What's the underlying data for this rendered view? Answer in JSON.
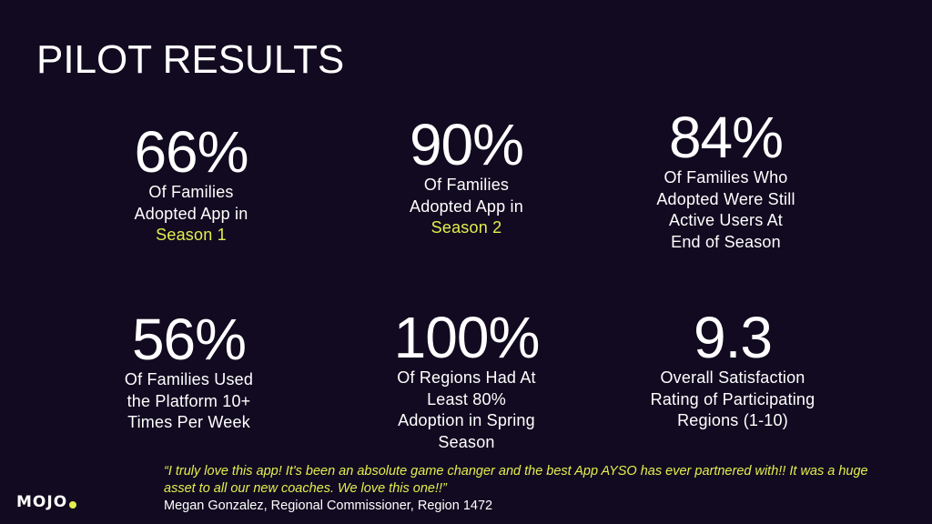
{
  "title": "PILOT RESULTS",
  "stats": [
    {
      "number": "66%",
      "lines": [
        "Of Families",
        "Adopted App in"
      ],
      "highlight": "Season 1"
    },
    {
      "number": "90%",
      "lines": [
        "Of Families",
        "Adopted App in"
      ],
      "highlight": "Season 2"
    },
    {
      "number": "84%",
      "lines": [
        "Of Families Who",
        "Adopted Were Still",
        "Active Users At",
        "End of Season"
      ]
    },
    {
      "number": "56%",
      "lines": [
        "Of Families Used",
        "the Platform 10+",
        "Times Per Week"
      ]
    },
    {
      "number": "100%",
      "lines": [
        "Of Regions Had At",
        "Least 80%",
        "Adoption in Spring",
        "Season"
      ]
    },
    {
      "number": "9.3",
      "lines": [
        "Overall Satisfaction",
        "Rating of Participating",
        "Regions (1-10)"
      ]
    }
  ],
  "quote": {
    "text": "“I truly love this app! It's been an absolute game changer and the best App AYSO has ever partnered with!! It was a huge asset to all our new coaches. We love this one!!”",
    "author": "Megan Gonzalez, Regional Commissioner, Region 1472"
  },
  "logo": {
    "text": "MOJO"
  },
  "colors": {
    "background": "#120a20",
    "accent": "#e2ef4e",
    "text": "#ffffff"
  }
}
